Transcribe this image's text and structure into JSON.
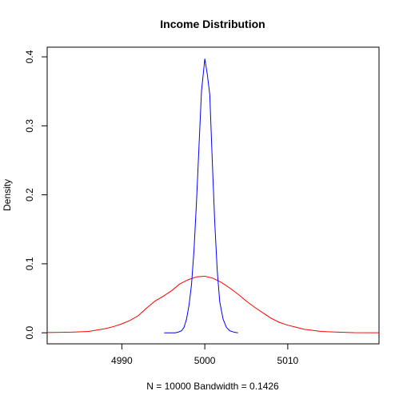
{
  "chart_data": {
    "type": "line",
    "title": "Income Distribution",
    "xlabel": "N = 10000   Bandwidth = 0.1426",
    "ylabel": "Density",
    "xlim": [
      4981,
      5021
    ],
    "ylim": [
      -0.016,
      0.414
    ],
    "x_ticks": [
      {
        "value": 4990,
        "label": "4990"
      },
      {
        "value": 5000,
        "label": "5000"
      },
      {
        "value": 5010,
        "label": "5010"
      }
    ],
    "y_ticks": [
      {
        "value": 0.0,
        "label": "0.0"
      },
      {
        "value": 0.1,
        "label": "0.1"
      },
      {
        "value": 0.2,
        "label": "0.2"
      },
      {
        "value": 0.3,
        "label": "0.3"
      },
      {
        "value": 0.4,
        "label": "0.4"
      }
    ],
    "grid": false,
    "legend": "none",
    "series": [
      {
        "color": "#ff0000",
        "x": [
          4980,
          4984,
          4986,
          4987,
          4988,
          4989,
          4990,
          4991,
          4992,
          4993,
          4994,
          4995,
          4996,
          4997,
          4998,
          4999,
          5000,
          5001,
          5002,
          5003,
          5004,
          5005,
          5006,
          5007,
          5008,
          5009,
          5010,
          5011,
          5012,
          5014,
          5016,
          5018,
          5021
        ],
        "y": [
          0.0002,
          0.001,
          0.002,
          0.004,
          0.006,
          0.009,
          0.013,
          0.018,
          0.025,
          0.036,
          0.046,
          0.053,
          0.061,
          0.071,
          0.077,
          0.081,
          0.082,
          0.079,
          0.073,
          0.065,
          0.056,
          0.046,
          0.037,
          0.029,
          0.021,
          0.015,
          0.011,
          0.008,
          0.005,
          0.002,
          0.001,
          0.0003,
          0.0001
        ]
      },
      {
        "color": "#0000ff",
        "x": [
          4995.1,
          4996.4,
          4996.8,
          4997.2,
          4997.5,
          4997.8,
          4998.1,
          4998.4,
          4998.7,
          4999.0,
          4999.3,
          4999.6,
          5000.0,
          5000.3,
          5000.6,
          5000.9,
          5001.2,
          5001.5,
          5001.8,
          5002.2,
          5002.6,
          5003.0,
          5003.5,
          5004.0
        ],
        "y": [
          0.0,
          0.0,
          0.001,
          0.003,
          0.008,
          0.02,
          0.04,
          0.07,
          0.12,
          0.19,
          0.27,
          0.35,
          0.397,
          0.375,
          0.345,
          0.25,
          0.16,
          0.09,
          0.045,
          0.02,
          0.008,
          0.003,
          0.001,
          0.0
        ]
      }
    ]
  }
}
